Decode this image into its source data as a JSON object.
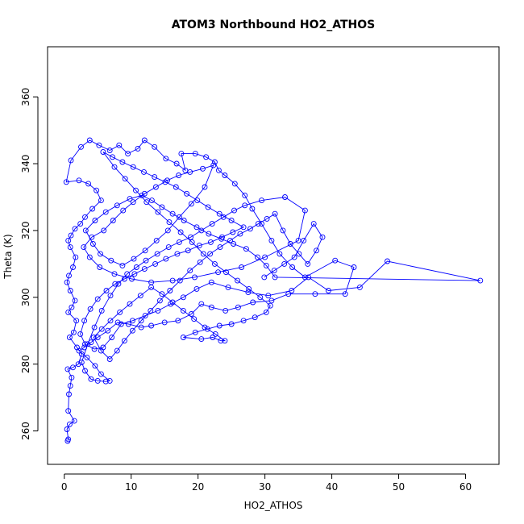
{
  "chart_data": {
    "type": "line",
    "title": "ATOM3 Northbound HO2_ATHOS",
    "xlabel": "HO2_ATHOS",
    "ylabel": "Theta (K)",
    "xlim": [
      -2.5,
      65
    ],
    "ylim": [
      250,
      375
    ],
    "xticks": [
      "0",
      "10",
      "20",
      "30",
      "40",
      "50",
      "60"
    ],
    "yticks": [
      "260",
      "280",
      "300",
      "320",
      "340",
      "360"
    ],
    "grid": false,
    "legend": "none",
    "colors": {
      "series": "#0000ff",
      "axes": "#000000"
    },
    "series": [
      {
        "marker": "open-circle",
        "line": "solid",
        "points": [
          [
            0.5,
            257
          ],
          [
            0.6,
            257.5
          ],
          [
            0.4,
            260.5
          ],
          [
            0.8,
            262
          ],
          [
            1.5,
            263
          ],
          [
            0.6,
            266
          ],
          [
            0.7,
            271
          ],
          [
            0.9,
            273.5
          ],
          [
            1.1,
            276
          ],
          [
            0.5,
            278.5
          ],
          [
            1.3,
            279
          ],
          [
            2.1,
            280
          ],
          [
            2.6,
            283
          ],
          [
            1.9,
            285
          ],
          [
            0.8,
            288
          ],
          [
            1.4,
            289.5
          ],
          [
            1.8,
            293
          ],
          [
            0.6,
            295.5
          ],
          [
            1.1,
            297
          ],
          [
            1.6,
            299
          ],
          [
            0.9,
            302
          ],
          [
            0.4,
            304.5
          ],
          [
            0.7,
            306.5
          ],
          [
            1.3,
            309
          ],
          [
            1.7,
            312
          ],
          [
            0.9,
            315
          ],
          [
            0.6,
            317
          ],
          [
            1.0,
            318.5
          ],
          [
            1.6,
            320.5
          ],
          [
            2.4,
            322
          ],
          [
            3.1,
            324
          ],
          [
            4.2,
            326.5
          ],
          [
            5.5,
            329
          ],
          [
            4.8,
            332
          ],
          [
            3.6,
            334
          ],
          [
            2.2,
            335
          ],
          [
            0.3,
            334.5
          ],
          [
            1.0,
            341
          ],
          [
            2.5,
            345
          ],
          [
            3.8,
            347
          ],
          [
            5.2,
            345.5
          ],
          [
            6.8,
            344
          ],
          [
            8.2,
            345.5
          ],
          [
            9.5,
            343
          ],
          [
            11.0,
            344.5
          ],
          [
            12.0,
            347
          ],
          [
            13.5,
            345
          ],
          [
            15.2,
            341.5
          ],
          [
            16.8,
            340
          ],
          [
            18.1,
            338
          ],
          [
            17.5,
            343
          ],
          [
            19.6,
            343
          ],
          [
            21.2,
            342
          ],
          [
            22.5,
            340.5
          ],
          [
            23.1,
            338
          ],
          [
            24.0,
            336.5
          ],
          [
            25.5,
            334
          ],
          [
            27.0,
            330.5
          ],
          [
            28.1,
            326.5
          ],
          [
            29.5,
            322
          ],
          [
            31.0,
            317
          ],
          [
            32.2,
            313
          ],
          [
            34.1,
            309
          ],
          [
            36.0,
            306
          ],
          [
            40.5,
            311
          ],
          [
            43.3,
            309
          ],
          [
            42.0,
            301
          ],
          [
            37.5,
            301
          ],
          [
            33.5,
            301
          ],
          [
            31.0,
            299
          ],
          [
            28.2,
            298.5
          ],
          [
            26.0,
            297
          ],
          [
            24.1,
            296
          ],
          [
            22.0,
            297
          ],
          [
            20.5,
            298
          ],
          [
            19.0,
            295
          ],
          [
            17.0,
            293
          ],
          [
            15.0,
            292.5
          ],
          [
            13.0,
            291.5
          ],
          [
            11.5,
            291
          ],
          [
            9.6,
            292
          ],
          [
            8.0,
            292.5
          ],
          [
            6.5,
            290
          ],
          [
            5.0,
            288
          ],
          [
            4.0,
            286.5
          ],
          [
            3.0,
            285
          ],
          [
            2.2,
            284
          ],
          [
            3.4,
            282
          ],
          [
            4.6,
            279.5
          ],
          [
            5.5,
            277
          ],
          [
            6.8,
            275
          ],
          [
            6.2,
            274.8
          ],
          [
            5.0,
            275
          ],
          [
            4.0,
            275.5
          ],
          [
            3.1,
            278
          ],
          [
            2.6,
            280.5
          ],
          [
            3.5,
            286
          ],
          [
            4.5,
            291
          ],
          [
            5.6,
            296
          ],
          [
            6.9,
            300.5
          ],
          [
            8.1,
            304
          ],
          [
            9.4,
            307
          ],
          [
            10.8,
            309
          ],
          [
            12.2,
            311
          ],
          [
            13.9,
            313
          ],
          [
            15.6,
            315
          ],
          [
            17.2,
            316.5
          ],
          [
            18.9,
            318
          ],
          [
            20.5,
            320
          ],
          [
            22.1,
            322
          ],
          [
            23.8,
            324
          ],
          [
            25.4,
            326
          ],
          [
            27.0,
            327.5
          ],
          [
            29.5,
            329
          ],
          [
            33.0,
            330
          ],
          [
            36.0,
            326
          ],
          [
            35.0,
            317
          ],
          [
            30.0,
            312
          ],
          [
            26.5,
            309
          ],
          [
            23.0,
            307.5
          ],
          [
            19.5,
            306
          ],
          [
            16.2,
            305
          ],
          [
            13.0,
            304.5
          ],
          [
            10.1,
            305.5
          ],
          [
            7.5,
            307
          ],
          [
            5.3,
            309
          ],
          [
            3.8,
            312
          ],
          [
            2.9,
            315
          ],
          [
            4.1,
            318
          ],
          [
            5.9,
            320
          ],
          [
            7.3,
            323
          ],
          [
            8.8,
            326
          ],
          [
            10.3,
            328.5
          ],
          [
            12.0,
            331
          ],
          [
            13.7,
            333
          ],
          [
            15.4,
            335
          ],
          [
            17.1,
            336.5
          ],
          [
            18.8,
            337.5
          ],
          [
            20.7,
            338.5
          ],
          [
            22.3,
            339.5
          ],
          [
            21.0,
            333
          ],
          [
            19.0,
            328
          ],
          [
            17.2,
            324
          ],
          [
            15.5,
            320
          ],
          [
            13.8,
            317
          ],
          [
            12.1,
            314
          ],
          [
            10.4,
            311.5
          ],
          [
            8.7,
            309.5
          ],
          [
            7.0,
            311
          ],
          [
            5.4,
            313
          ],
          [
            4.3,
            316
          ],
          [
            3.2,
            320
          ],
          [
            4.6,
            323
          ],
          [
            6.2,
            325.5
          ],
          [
            7.9,
            327.5
          ],
          [
            9.8,
            329.5
          ],
          [
            11.6,
            330.5
          ],
          [
            13.1,
            329
          ],
          [
            14.6,
            327
          ],
          [
            16.2,
            325
          ],
          [
            17.9,
            323
          ],
          [
            19.8,
            321
          ],
          [
            21.6,
            319
          ],
          [
            23.5,
            317.5
          ],
          [
            25.3,
            316
          ],
          [
            27.2,
            314.5
          ],
          [
            28.9,
            312
          ],
          [
            30.2,
            309.5
          ],
          [
            31.5,
            306
          ],
          [
            62.2,
            305
          ],
          [
            48.3,
            310.8
          ],
          [
            44.2,
            303
          ],
          [
            39.5,
            302
          ],
          [
            36.5,
            306
          ],
          [
            34.0,
            302
          ],
          [
            30.5,
            300.5
          ],
          [
            27.5,
            301.5
          ],
          [
            24.5,
            303
          ],
          [
            22.0,
            304.5
          ],
          [
            19.8,
            302.5
          ],
          [
            17.8,
            300
          ],
          [
            15.9,
            298
          ],
          [
            14.0,
            296
          ],
          [
            12.1,
            294.5
          ],
          [
            10.2,
            293
          ],
          [
            8.5,
            292
          ],
          [
            7.1,
            288
          ],
          [
            5.8,
            285
          ],
          [
            4.5,
            284.5
          ],
          [
            3.1,
            286
          ],
          [
            2.4,
            289
          ],
          [
            3.0,
            293
          ],
          [
            3.9,
            296.5
          ],
          [
            5.0,
            299.5
          ],
          [
            6.3,
            302
          ],
          [
            7.6,
            304
          ],
          [
            9.0,
            305.5
          ],
          [
            10.5,
            307
          ],
          [
            12.0,
            308.5
          ],
          [
            13.6,
            310
          ],
          [
            15.2,
            311.5
          ],
          [
            16.9,
            313
          ],
          [
            18.5,
            314
          ],
          [
            20.2,
            315.5
          ],
          [
            21.9,
            316.5
          ],
          [
            23.6,
            318
          ],
          [
            25.2,
            319.5
          ],
          [
            26.8,
            321
          ],
          [
            25.0,
            323
          ],
          [
            23.2,
            325
          ],
          [
            21.5,
            327
          ],
          [
            19.9,
            329
          ],
          [
            18.3,
            331
          ],
          [
            16.7,
            333
          ],
          [
            15.1,
            334.5
          ],
          [
            13.5,
            336
          ],
          [
            11.9,
            337.5
          ],
          [
            10.3,
            339
          ],
          [
            8.7,
            340.5
          ],
          [
            7.2,
            342
          ],
          [
            5.8,
            343.5
          ],
          [
            7.5,
            339
          ],
          [
            9.1,
            335.5
          ],
          [
            10.7,
            332
          ],
          [
            12.3,
            328.5
          ],
          [
            14.0,
            325.5
          ],
          [
            15.7,
            322.5
          ],
          [
            17.4,
            319.5
          ],
          [
            19.1,
            316.5
          ],
          [
            20.8,
            313
          ],
          [
            22.5,
            310
          ],
          [
            24.2,
            307.5
          ],
          [
            25.9,
            305
          ],
          [
            27.6,
            302.5
          ],
          [
            29.3,
            300
          ],
          [
            30.8,
            297.5
          ],
          [
            30.2,
            295.5
          ],
          [
            28.5,
            294
          ],
          [
            26.8,
            293
          ],
          [
            25.0,
            292
          ],
          [
            23.2,
            291.5
          ],
          [
            21.4,
            290.5
          ],
          [
            19.6,
            289.5
          ],
          [
            17.8,
            288
          ],
          [
            20.5,
            287.5
          ],
          [
            22.2,
            288
          ],
          [
            23.4,
            287
          ],
          [
            24.0,
            287
          ],
          [
            22.6,
            289
          ],
          [
            21.0,
            291
          ],
          [
            19.4,
            293.5
          ],
          [
            17.8,
            296
          ],
          [
            16.2,
            298.5
          ],
          [
            14.6,
            301
          ],
          [
            13.0,
            303
          ],
          [
            11.4,
            300.5
          ],
          [
            9.8,
            298
          ],
          [
            8.3,
            295.5
          ],
          [
            6.9,
            293
          ],
          [
            5.6,
            290.5
          ],
          [
            4.4,
            288
          ],
          [
            5.5,
            284
          ],
          [
            6.8,
            281.5
          ],
          [
            7.9,
            284
          ],
          [
            9.0,
            287
          ],
          [
            10.2,
            290
          ],
          [
            11.5,
            293
          ],
          [
            12.9,
            296
          ],
          [
            14.3,
            299
          ],
          [
            15.8,
            302
          ],
          [
            17.3,
            305
          ],
          [
            18.8,
            308
          ],
          [
            20.3,
            310.5
          ],
          [
            21.8,
            313
          ],
          [
            23.3,
            315
          ],
          [
            24.8,
            317
          ],
          [
            26.3,
            319
          ],
          [
            27.8,
            320.5
          ],
          [
            29.0,
            322
          ],
          [
            30.3,
            323.5
          ],
          [
            31.5,
            325
          ],
          [
            32.7,
            320
          ],
          [
            33.8,
            316
          ],
          [
            35.1,
            313
          ],
          [
            36.4,
            310
          ],
          [
            37.7,
            314
          ],
          [
            38.6,
            318
          ],
          [
            37.3,
            322
          ],
          [
            35.8,
            317
          ],
          [
            34.4,
            312
          ],
          [
            32.9,
            310
          ],
          [
            31.4,
            308
          ],
          [
            29.9,
            306
          ]
        ]
      }
    ]
  }
}
